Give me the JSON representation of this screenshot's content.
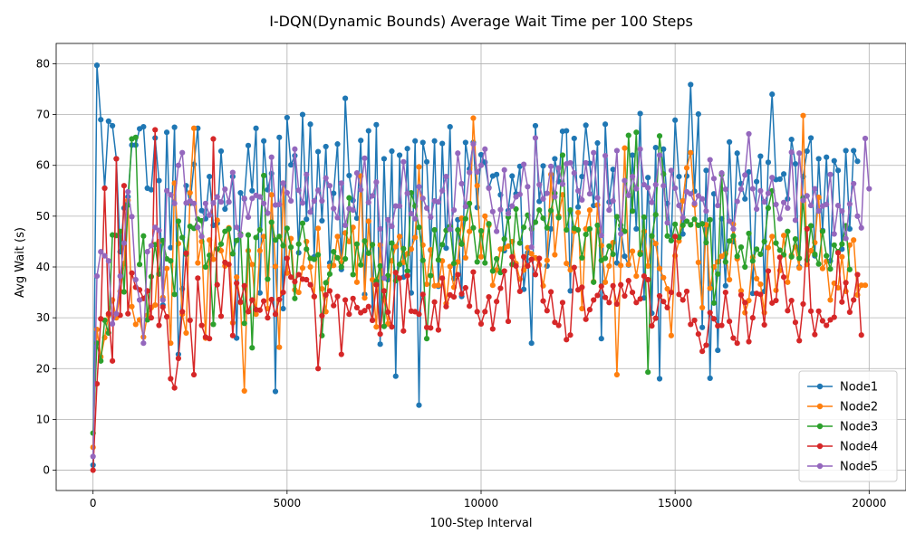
{
  "chart_data": {
    "type": "line",
    "title": "I-DQN(Dynamic Bounds) Average Wait Time per 100 Steps",
    "xlabel": "100-Step Interval",
    "ylabel": "Avg Wait (s)",
    "xlim": [
      -950,
      20950
    ],
    "ylim": [
      -4,
      84
    ],
    "xticks": [
      0,
      5000,
      10000,
      15000,
      20000
    ],
    "yticks": [
      0,
      10,
      20,
      30,
      40,
      50,
      60,
      70,
      80
    ],
    "grid": true,
    "legend_position": "lower-right",
    "marker": "circle",
    "x": {
      "start": 0,
      "step": 100,
      "count": 200
    },
    "series": [
      {
        "name": "Node1",
        "color": "#1f77b4",
        "values": [
          1.0,
          79.7,
          69.0,
          55.5,
          68.7,
          67.8,
          61.3,
          43.0,
          51.6,
          53.8,
          64.0,
          64.0,
          67.2,
          67.6,
          55.5,
          55.2,
          65.4,
          57.0,
          32.5,
          66.5,
          43.8,
          67.5,
          22.8,
          35.7,
          56.0,
          52.5,
          60.2,
          67.3,
          51.1,
          49.5,
          57.8,
          48.2,
          48.6,
          62.8,
          51.4,
          52.8,
          57.8,
          26.0,
          54.6,
          53.4,
          63.9,
          55.0,
          67.3,
          34.9,
          64.8,
          55.2,
          58.4,
          15.5,
          65.5,
          31.8,
          69.4,
          60.1,
          61.9,
          42.8,
          70.0,
          49.4,
          68.1,
          42.0,
          62.7,
          49.1,
          63.7,
          40.8,
          54.5,
          64.2,
          39.5,
          73.2,
          58.0,
          53.1,
          49.6,
          64.9,
          34.6,
          66.8,
          29.5,
          68.0,
          24.8,
          61.3,
          37.5,
          62.8,
          18.5,
          62.0,
          38.0,
          63.3,
          34.9,
          64.8,
          12.8,
          64.5,
          60.7,
          43.3,
          64.8,
          36.2,
          64.3,
          43.7,
          67.6,
          37.7,
          49.3,
          34.2,
          64.5,
          59.3,
          64.5,
          51.7,
          62.1,
          60.6,
          55.6,
          57.9,
          58.2,
          54.2,
          43.2,
          51.1,
          57.9,
          54.4,
          59.8,
          35.6,
          42.8,
          25.0,
          67.8,
          52.9,
          59.9,
          40.2,
          47.5,
          61.3,
          56.8,
          66.7,
          66.8,
          35.3,
          65.3,
          51.8,
          57.8,
          67.9,
          60.4,
          52.1,
          64.4,
          25.9,
          68.1,
          52.8,
          59.2,
          40.8,
          47.5,
          42.1,
          40.4,
          62.0,
          47.5,
          70.2,
          33.9,
          57.6,
          30.9,
          63.5,
          18.0,
          63.2,
          52.5,
          45.2,
          68.9,
          57.8,
          46.5,
          57.9,
          75.9,
          54.9,
          70.1,
          28.1,
          59.0,
          18.1,
          54.4,
          23.6,
          49.5,
          36.3,
          64.6,
          45.0,
          62.4,
          56.4,
          53.4,
          58.7,
          34.8,
          56.8,
          61.8,
          35.2,
          60.6,
          74.0,
          57.2,
          57.3,
          58.3,
          53.4,
          65.1,
          60.3,
          40.0,
          57.8,
          62.8,
          65.4,
          42.2,
          61.3,
          47.2,
          61.6,
          41.2,
          60.9,
          59.0,
          43.5,
          62.9,
          47.5,
          62.9,
          60.8
        ]
      },
      {
        "name": "Node2",
        "color": "#ff7f0e",
        "values": [
          4.5,
          27.7,
          22.3,
          26.1,
          30.5,
          33.5,
          30.0,
          35.2,
          40.7,
          53.1,
          32.2,
          28.7,
          29.6,
          26.2,
          30.5,
          32.0,
          32.5,
          45.0,
          34.0,
          39.7,
          25.0,
          56.5,
          44.6,
          30.7,
          27.0,
          54.6,
          67.3,
          40.8,
          45.0,
          26.0,
          45.3,
          41.5,
          49.2,
          43.2,
          40.2,
          47.7,
          29.0,
          38.0,
          33.0,
          15.6,
          43.2,
          40.5,
          30.7,
          43.2,
          46.0,
          31.8,
          54.2,
          40.1,
          24.2,
          56.5,
          38.8,
          45.6,
          35.5,
          35.0,
          39.8,
          45.0,
          40.0,
          34.1,
          47.6,
          35.7,
          31.2,
          40.1,
          40.3,
          46.0,
          40.8,
          46.7,
          45.0,
          47.8,
          37.0,
          57.9,
          33.9,
          49.0,
          37.5,
          28.2,
          44.3,
          33.6,
          28.8,
          41.2,
          44.0,
          46.0,
          40.9,
          42.6,
          43.5,
          45.8,
          59.7,
          44.3,
          36.6,
          43.4,
          36.3,
          36.4,
          41.2,
          32.8,
          40.1,
          36.0,
          41.0,
          49.6,
          41.8,
          47.0,
          69.3,
          56.0,
          42.0,
          50.0,
          48.2,
          36.4,
          39.4,
          43.5,
          43.7,
          44.1,
          45.0,
          40.7,
          37.6,
          39.4,
          43.8,
          42.6,
          41.8,
          40.4,
          36.3,
          41.3,
          58.2,
          42.4,
          50.0,
          54.2,
          40.7,
          39.4,
          47.0,
          50.7,
          31.8,
          47.5,
          51.2,
          37.1,
          52.2,
          44.2,
          37.0,
          40.2,
          44.8,
          18.8,
          40.3,
          63.4,
          40.5,
          43.1,
          38.2,
          42.9,
          47.0,
          40.2,
          46.1,
          44.6,
          39.7,
          37.9,
          35.7,
          26.5,
          42.2,
          45.1,
          53.0,
          59.5,
          62.5,
          52.2,
          40.9,
          32.0,
          48.3,
          35.8,
          40.0,
          41.0,
          42.1,
          42.6,
          37.5,
          48.4,
          41.6,
          35.3,
          31.0,
          33.4,
          41.9,
          37.7,
          36.6,
          31.0,
          43.8,
          46.0,
          35.4,
          39.3,
          46.2,
          37.0,
          42.3,
          44.0,
          39.8,
          69.8,
          40.5,
          43.2,
          44.8,
          53.7,
          39.7,
          41.1,
          33.5,
          36.8,
          35.9,
          42.0,
          35.2,
          44.3,
          45.3,
          34.5,
          36.4,
          36.4
        ]
      },
      {
        "name": "Node3",
        "color": "#2ca02c",
        "values": [
          7.3,
          25.0,
          21.5,
          29.5,
          27.0,
          46.3,
          46.2,
          47.0,
          35.1,
          52.2,
          65.2,
          65.5,
          40.5,
          46.1,
          29.6,
          38.1,
          44.4,
          38.6,
          45.2,
          41.6,
          41.2,
          34.6,
          49.0,
          45.8,
          42.5,
          48.0,
          47.6,
          49.4,
          49.1,
          40.0,
          42.3,
          28.7,
          43.5,
          44.5,
          47.0,
          47.5,
          42.6,
          45.2,
          46.5,
          28.9,
          46.3,
          24.1,
          45.8,
          47.3,
          58.0,
          37.6,
          48.8,
          45.3,
          46.0,
          44.2,
          47.6,
          43.9,
          33.8,
          44.5,
          48.6,
          43.5,
          41.7,
          41.5,
          42.4,
          26.5,
          36.9,
          38.6,
          43.0,
          41.8,
          40.0,
          41.6,
          53.6,
          38.5,
          44.5,
          40.4,
          45.1,
          42.7,
          44.4,
          37.2,
          40.2,
          28.3,
          38.3,
          44.7,
          37.3,
          40.5,
          43.6,
          39.2,
          54.6,
          52.0,
          47.8,
          41.3,
          25.9,
          38.3,
          47.3,
          41.4,
          44.4,
          47.2,
          48.0,
          40.7,
          47.3,
          44.5,
          49.5,
          52.5,
          47.7,
          41.0,
          47.1,
          40.8,
          48.5,
          39.2,
          41.6,
          38.9,
          45.5,
          49.8,
          40.5,
          51.4,
          44.7,
          47.8,
          50.2,
          47.5,
          48.8,
          51.2,
          49.6,
          47.7,
          51.1,
          54.5,
          49.7,
          62.0,
          47.3,
          51.2,
          47.6,
          47.3,
          41.8,
          46.4,
          47.5,
          37.0,
          48.2,
          41.3,
          41.7,
          44.1,
          42.5,
          49.9,
          48.2,
          47.0,
          65.9,
          51.0,
          66.5,
          42.5,
          49.8,
          19.3,
          46.1,
          50.3,
          65.8,
          58.3,
          46.1,
          45.2,
          48.4,
          45.8,
          48.2,
          49.0,
          48.3,
          49.4,
          48.2,
          48.5,
          44.8,
          49.3,
          32.9,
          38.6,
          58.2,
          41.0,
          45.1,
          46.1,
          42.1,
          43.9,
          40.0,
          46.6,
          41.2,
          43.5,
          42.5,
          45.0,
          51.6,
          55.0,
          44.7,
          43.3,
          42.4,
          47.0,
          42.0,
          45.5,
          41.7,
          53.6,
          41.4,
          48.1,
          42.5,
          40.6,
          47.0,
          42.2,
          39.6,
          44.3,
          43.0,
          44.5,
          48.1,
          39.5
        ]
      },
      {
        "name": "Node4",
        "color": "#d62728",
        "values": [
          0.0,
          17.0,
          29.8,
          55.5,
          30.8,
          21.5,
          61.3,
          30.5,
          56.0,
          30.8,
          38.8,
          36.0,
          35.5,
          33.8,
          35.3,
          30.0,
          67.0,
          28.5,
          32.1,
          30.2,
          18.0,
          16.2,
          22.0,
          31.2,
          42.7,
          29.5,
          18.8,
          37.8,
          28.5,
          26.2,
          25.9,
          65.2,
          36.5,
          30.3,
          40.9,
          40.5,
          26.5,
          36.8,
          33.1,
          36.3,
          31.2,
          33.5,
          31.6,
          31.5,
          33.3,
          30.0,
          33.6,
          30.7,
          33.6,
          35.0,
          41.7,
          38.0,
          37.1,
          38.5,
          37.6,
          37.5,
          36.5,
          34.2,
          20.0,
          30.4,
          34.5,
          35.3,
          32.4,
          34.2,
          22.8,
          33.5,
          30.7,
          33.8,
          32.0,
          31.0,
          31.4,
          32.2,
          29.5,
          36.5,
          26.8,
          35.3,
          31.1,
          28.2,
          38.9,
          37.8,
          27.4,
          38.3,
          31.3,
          31.2,
          30.7,
          34.6,
          28.1,
          28.0,
          33.1,
          27.6,
          37.8,
          32.2,
          34.5,
          34.1,
          38.5,
          34.7,
          35.9,
          32.3,
          39.0,
          31.2,
          28.8,
          31.2,
          34.1,
          27.8,
          33.2,
          35.8,
          39.2,
          29.3,
          42.0,
          40.2,
          35.2,
          42.0,
          40.2,
          41.5,
          38.5,
          41.7,
          33.3,
          31.4,
          35.1,
          29.1,
          28.5,
          33.0,
          25.7,
          26.6,
          39.9,
          35.5,
          36.0,
          29.7,
          31.6,
          33.5,
          34.4,
          36.2,
          34.0,
          33.0,
          36.3,
          32.7,
          36.5,
          34.3,
          37.3,
          35.0,
          33.0,
          33.7,
          38.2,
          37.5,
          28.4,
          29.9,
          34.3,
          33.2,
          32.0,
          35.0,
          46.0,
          34.6,
          33.5,
          35.2,
          28.7,
          29.5,
          26.8,
          23.4,
          24.6,
          31.0,
          29.8,
          28.4,
          28.5,
          35.0,
          29.3,
          26.0,
          25.0,
          34.5,
          33.0,
          25.3,
          30.0,
          34.8,
          34.6,
          28.6,
          39.2,
          32.9,
          33.4,
          41.9,
          38.0,
          31.4,
          33.4,
          29.1,
          25.5,
          32.7,
          47.5,
          31.3,
          26.7,
          31.3,
          29.4,
          28.5,
          29.6,
          30.1,
          42.8,
          33.1,
          36.9,
          31.1,
          33.5,
          38.5,
          26.6
        ]
      },
      {
        "name": "Node5",
        "color": "#9467bd",
        "values": [
          2.7,
          38.2,
          43.0,
          42.2,
          41.2,
          28.8,
          30.8,
          38.2,
          44.7,
          54.8,
          49.9,
          37.5,
          33.5,
          25.0,
          43.0,
          44.2,
          47.8,
          47.2,
          33.5,
          55.0,
          54.2,
          52.5,
          60.0,
          62.5,
          52.6,
          53.0,
          52.5,
          47.8,
          46.0,
          52.5,
          50.2,
          52.6,
          53.8,
          52.8,
          55.3,
          52.8,
          58.6,
          47.8,
          46.2,
          53.5,
          49.8,
          53.5,
          54.1,
          53.8,
          52.5,
          50.6,
          61.6,
          52.2,
          52.3,
          56.5,
          54.6,
          53.0,
          63.2,
          55.1,
          52.6,
          58.2,
          50.8,
          53.0,
          55.1,
          53.0,
          57.5,
          56.0,
          51.5,
          49.7,
          56.5,
          48.2,
          51.5,
          51.2,
          58.5,
          55.2,
          61.4,
          52.7,
          54.0,
          56.7,
          47.5,
          37.8,
          49.3,
          48.0,
          52.0,
          52.0,
          60.7,
          54.5,
          50.5,
          49.5,
          55.8,
          53.5,
          51.6,
          49.8,
          53.0,
          52.8,
          55.0,
          57.8,
          47.4,
          51.2,
          62.4,
          56.4,
          51.9,
          58.6,
          64.2,
          58.7,
          60.0,
          63.2,
          55.5,
          50.9,
          47.0,
          51.3,
          59.1,
          50.5,
          52.0,
          53.8,
          54.3,
          60.2,
          55.8,
          43.9,
          65.4,
          56.2,
          53.4,
          54.5,
          59.8,
          53.8,
          59.5,
          56.3,
          60.3,
          60.5,
          58.5,
          55.0,
          53.2,
          60.5,
          54.4,
          62.5,
          53.6,
          46.2,
          61.9,
          51.2,
          53.0,
          62.9,
          46.5,
          57.0,
          54.1,
          57.8,
          55.4,
          63.2,
          56.2,
          55.6,
          52.7,
          56.2,
          62.0,
          56.0,
          48.7,
          59.0,
          55.5,
          52.1,
          49.7,
          54.8,
          54.4,
          52.5,
          54.0,
          53.4,
          51.0,
          61.1,
          57.4,
          52.1,
          58.5,
          55.3,
          49.0,
          47.5,
          52.9,
          55.3,
          58.1,
          66.2,
          55.4,
          51.4,
          55.0,
          52.8,
          54.5,
          57.6,
          52.3,
          49.5,
          52.7,
          51.6,
          62.6,
          49.2,
          62.4,
          53.1,
          54.0,
          52.1,
          55.4,
          51.0,
          52.0,
          52.3,
          58.2,
          46.5,
          52.1,
          51.0,
          45.6,
          52.4,
          56.4,
          50.0,
          47.7,
          65.3,
          55.4
        ]
      }
    ]
  }
}
